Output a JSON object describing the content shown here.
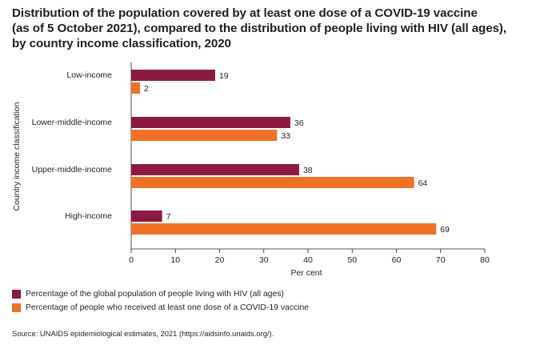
{
  "title_lines": [
    "Distribution of the population covered by at least one dose of a COVID-19 vaccine",
    "(as of 5 October 2021), compared to the distribution of people living with HIV (all ages),",
    "by country income classification, 2020"
  ],
  "colors": {
    "hiv": "#8b1a42",
    "vaccine": "#ef7126",
    "axis": "#231f20"
  },
  "chart_data": {
    "type": "bar",
    "orientation": "horizontal",
    "categories": [
      "Low-income",
      "Lower-middle-income",
      "Upper-middle-income",
      "High-income"
    ],
    "series": [
      {
        "name": "Percentage of the global population of people living with HIV (all ages)",
        "values": [
          19,
          36,
          38,
          7
        ]
      },
      {
        "name": "Percentage of people who received at least one dose of a COVID-19 vaccine",
        "values": [
          2,
          33,
          64,
          69
        ]
      }
    ],
    "xlabel": "Per cent",
    "ylabel": "Country income classification",
    "xlim": [
      0,
      80
    ],
    "xticks": [
      0,
      10,
      20,
      30,
      40,
      50,
      60,
      70,
      80
    ],
    "grid": false,
    "legend": "bottom-left"
  },
  "source": "Source: UNAIDS epidemiological estimates, 2021 (https://aidsinfo.unaids.org/)."
}
